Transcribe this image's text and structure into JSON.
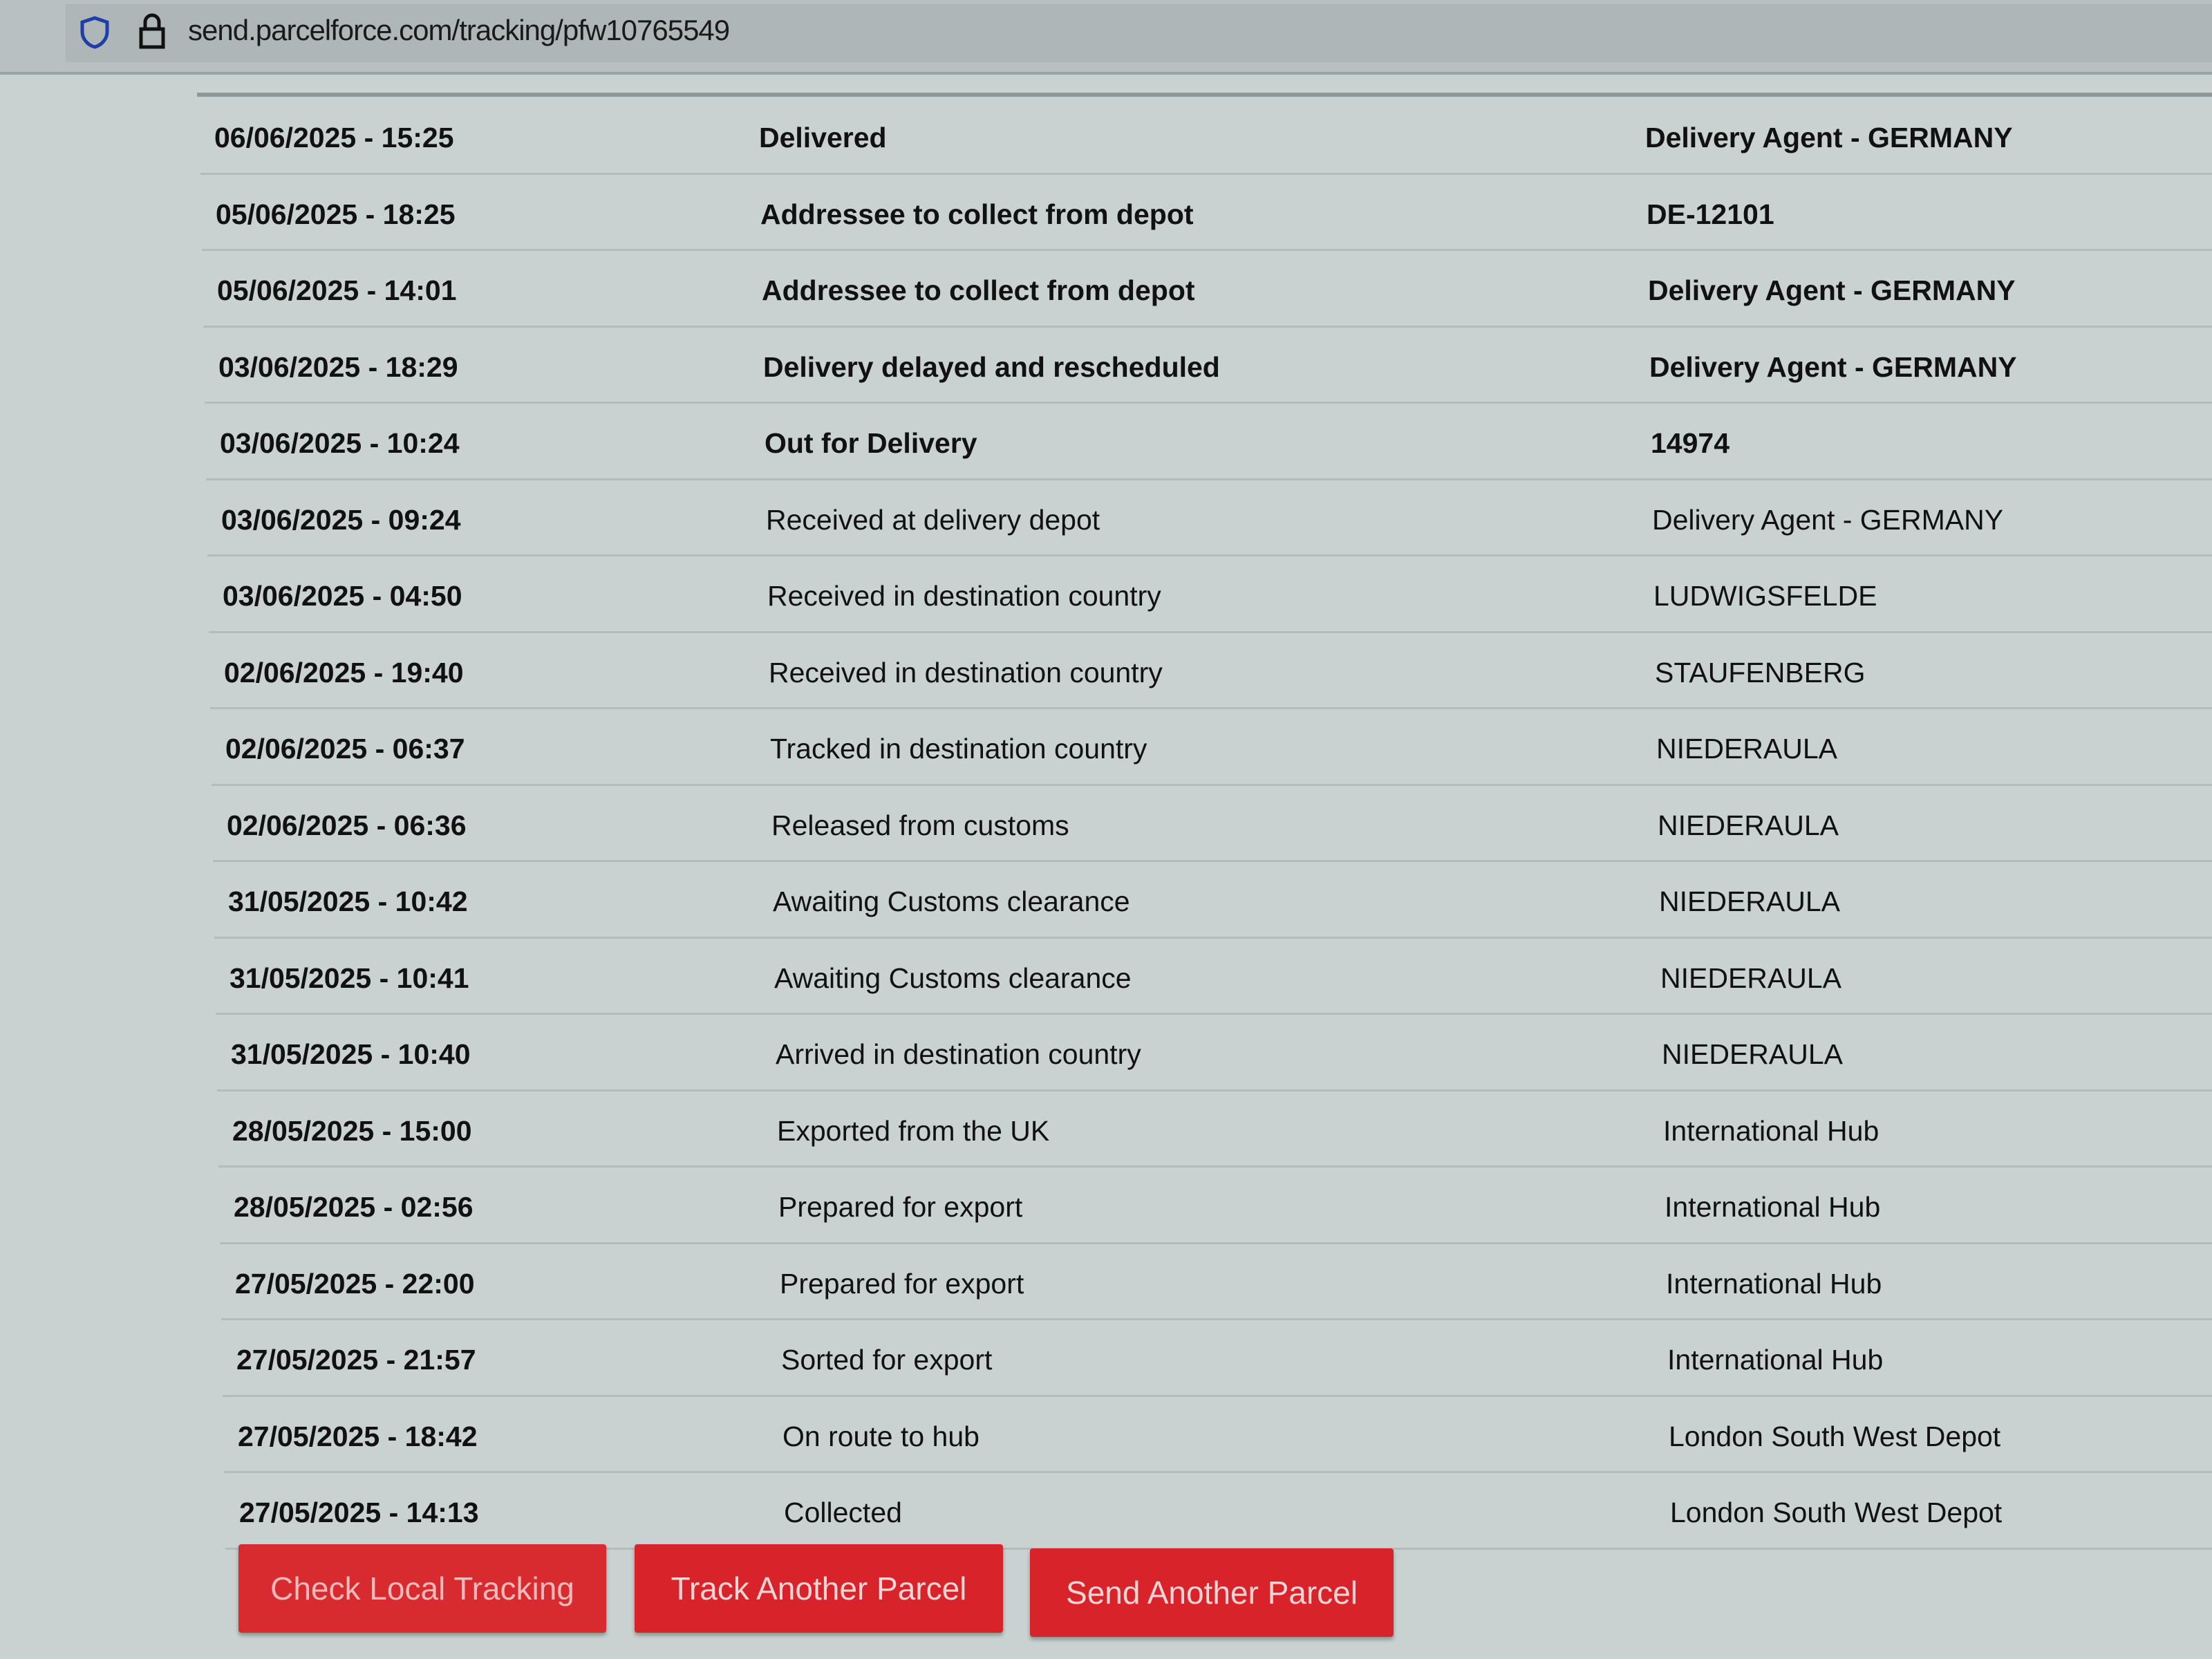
{
  "browser": {
    "url": "send.parcelforce.com/tracking/pfw10765549"
  },
  "events": [
    {
      "datetime": "06/06/2025 - 15:25",
      "status": "Delivered",
      "location": "Delivery Agent - GERMANY"
    },
    {
      "datetime": "05/06/2025 - 18:25",
      "status": "Addressee to collect from depot",
      "location": "DE-12101"
    },
    {
      "datetime": "05/06/2025 - 14:01",
      "status": "Addressee to collect from depot",
      "location": "Delivery Agent - GERMANY"
    },
    {
      "datetime": "03/06/2025 - 18:29",
      "status": "Delivery delayed and rescheduled",
      "location": "Delivery Agent - GERMANY"
    },
    {
      "datetime": "03/06/2025 - 10:24",
      "status": "Out for Delivery",
      "location": "14974"
    },
    {
      "datetime": "03/06/2025 - 09:24",
      "status": "Received at delivery depot",
      "location": "Delivery Agent - GERMANY"
    },
    {
      "datetime": "03/06/2025 - 04:50",
      "status": "Received in destination country",
      "location": "LUDWIGSFELDE"
    },
    {
      "datetime": "02/06/2025 - 19:40",
      "status": "Received in destination country",
      "location": "STAUFENBERG"
    },
    {
      "datetime": "02/06/2025 - 06:37",
      "status": "Tracked in destination country",
      "location": "NIEDERAULA"
    },
    {
      "datetime": "02/06/2025 - 06:36",
      "status": "Released from customs",
      "location": "NIEDERAULA"
    },
    {
      "datetime": "31/05/2025 - 10:42",
      "status": "Awaiting Customs clearance",
      "location": "NIEDERAULA"
    },
    {
      "datetime": "31/05/2025 - 10:41",
      "status": "Awaiting Customs clearance",
      "location": "NIEDERAULA"
    },
    {
      "datetime": "31/05/2025 - 10:40",
      "status": "Arrived in destination country",
      "location": "NIEDERAULA"
    },
    {
      "datetime": "28/05/2025 - 15:00",
      "status": "Exported from the UK",
      "location": "International Hub"
    },
    {
      "datetime": "28/05/2025 - 02:56",
      "status": "Prepared for export",
      "location": "International Hub"
    },
    {
      "datetime": "27/05/2025 - 22:00",
      "status": "Prepared for export",
      "location": "International Hub"
    },
    {
      "datetime": "27/05/2025 - 21:57",
      "status": "Sorted for export",
      "location": "International Hub"
    },
    {
      "datetime": "27/05/2025 - 18:42",
      "status": "On route to hub",
      "location": "London South West Depot"
    },
    {
      "datetime": "27/05/2025 - 14:13",
      "status": "Collected",
      "location": "London South West Depot"
    }
  ],
  "buttons": {
    "check_local": "Check Local Tracking",
    "track_another": "Track Another Parcel",
    "send_another": "Send Another Parcel"
  },
  "colors": {
    "brand_red": "#d8232a",
    "shield_blue": "#1f3fa8"
  }
}
